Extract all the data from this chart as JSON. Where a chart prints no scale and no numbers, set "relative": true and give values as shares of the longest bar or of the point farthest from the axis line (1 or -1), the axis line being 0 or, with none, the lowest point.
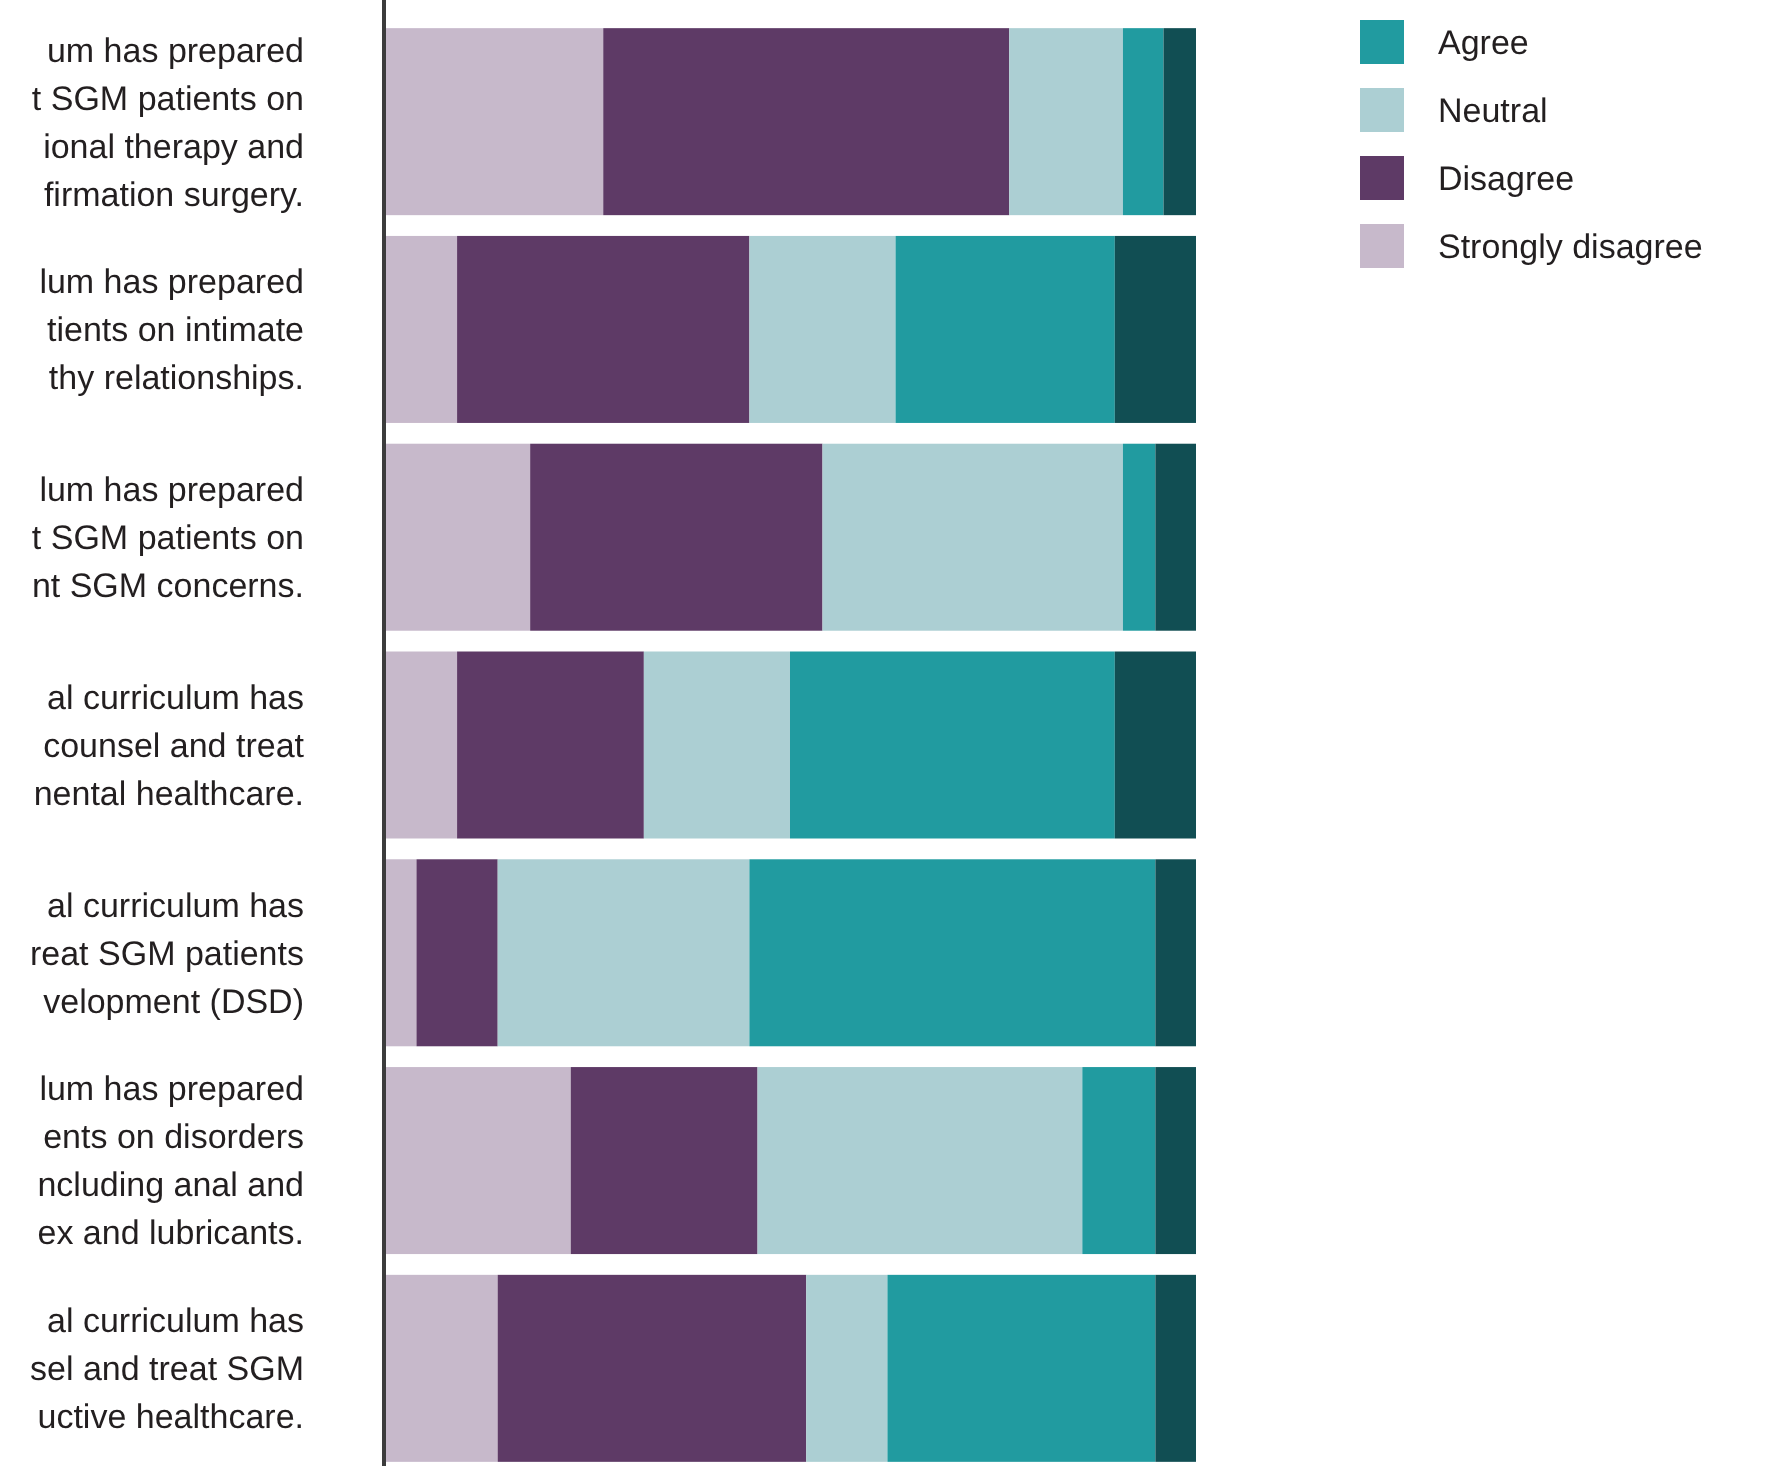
{
  "chart_data": {
    "type": "bar",
    "orientation": "horizontal",
    "stacked": true,
    "relative": true,
    "legend": "top right",
    "categories": [
      "um has prepared\nt SGM patients on\nional therapy and\nfirmation surgery.",
      "lum has prepared\ntients on intimate\nthy relationships.",
      "lum has prepared\nt SGM patients on\nnt SGM concerns.",
      "al curriculum has\ncounsel and treat\nnental healthcare.",
      "al curriculum has\nreat SGM patients\nvelopment (DSD)",
      "lum has prepared\nents on disorders\nncluding anal and\nex and lubricants.",
      "al curriculum has\nsel and treat SGM\nuctive healthcare."
    ],
    "series": [
      {
        "name": "Strongly disagree",
        "color": "#c7b9cb",
        "values": [
          0.27,
          0.09,
          0.18,
          0.09,
          0.04,
          0.23,
          0.14
        ]
      },
      {
        "name": "Disagree",
        "color": "#5e3a66",
        "values": [
          0.5,
          0.36,
          0.36,
          0.23,
          0.1,
          0.23,
          0.38
        ]
      },
      {
        "name": "Neutral",
        "color": "#accfd3",
        "values": [
          0.14,
          0.18,
          0.37,
          0.18,
          0.31,
          0.4,
          0.1
        ]
      },
      {
        "name": "Agree",
        "color": "#219ba0",
        "values": [
          0.05,
          0.27,
          0.04,
          0.4,
          0.5,
          0.09,
          0.33
        ]
      },
      {
        "color": "#114e53",
        "values": [
          0.04,
          0.1,
          0.05,
          0.1,
          0.05,
          0.05,
          0.05
        ]
      }
    ]
  }
}
